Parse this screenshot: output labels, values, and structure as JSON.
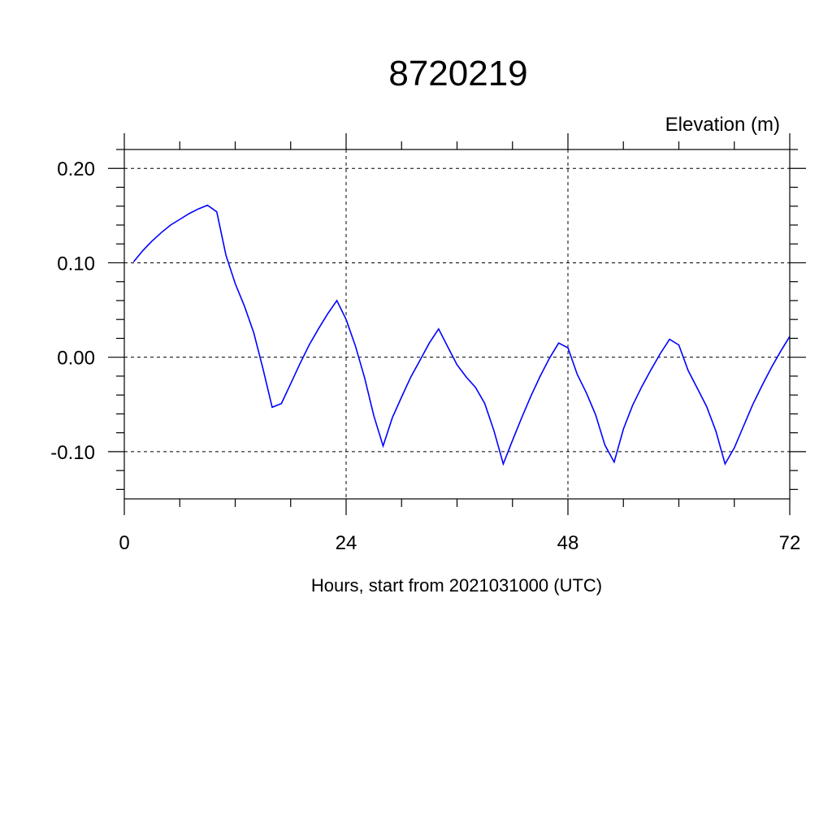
{
  "chart_data": {
    "type": "line",
    "title": "8720219",
    "xlabel": "Hours, start from 2021031000 (UTC)",
    "ylabel": "Elevation (m)",
    "xlim": [
      0,
      72
    ],
    "ylim": [
      -0.15,
      0.22
    ],
    "xticks": [
      0,
      24,
      48,
      72
    ],
    "xtick_labels": [
      "0",
      "24",
      "48",
      "72"
    ],
    "yticks": [
      -0.1,
      0.0,
      0.1,
      0.2
    ],
    "ytick_labels": [
      "-0.10",
      "0.00",
      "0.10",
      "0.20"
    ],
    "grid": true,
    "line_color": "#0000ff",
    "series": [
      {
        "x": [
          1,
          2,
          3,
          4,
          5,
          6,
          7,
          8,
          9,
          10,
          11,
          12,
          13,
          14,
          15,
          16,
          17,
          18,
          19,
          20,
          21,
          22,
          23,
          24,
          25,
          26,
          27,
          28,
          29,
          30,
          31,
          32,
          33,
          34,
          35,
          36,
          37,
          38,
          39,
          40,
          41,
          42,
          43,
          44,
          45,
          46,
          47,
          48,
          49,
          50,
          51,
          52,
          53,
          54,
          55,
          56,
          57,
          58,
          59,
          60,
          61,
          62,
          63,
          64,
          65,
          66,
          67,
          68,
          69,
          70,
          71,
          72
        ],
        "values": [
          0.101,
          0.113,
          0.123,
          0.132,
          0.14,
          0.146,
          0.152,
          0.157,
          0.161,
          0.154,
          0.108,
          0.078,
          0.054,
          0.026,
          -0.012,
          -0.053,
          -0.049,
          -0.028,
          -0.007,
          0.013,
          0.03,
          0.046,
          0.06,
          0.04,
          0.012,
          -0.022,
          -0.062,
          -0.094,
          -0.064,
          -0.042,
          -0.021,
          -0.003,
          0.015,
          0.03,
          0.011,
          -0.008,
          -0.021,
          -0.032,
          -0.049,
          -0.078,
          -0.113,
          -0.088,
          -0.064,
          -0.041,
          -0.02,
          -0.001,
          0.015,
          0.01,
          -0.018,
          -0.038,
          -0.061,
          -0.093,
          -0.111,
          -0.076,
          -0.051,
          -0.031,
          -0.013,
          0.004,
          0.019,
          0.013,
          -0.014,
          -0.033,
          -0.052,
          -0.078,
          -0.113,
          -0.096,
          -0.073,
          -0.05,
          -0.03,
          -0.011,
          0.006,
          0.022
        ]
      }
    ]
  }
}
